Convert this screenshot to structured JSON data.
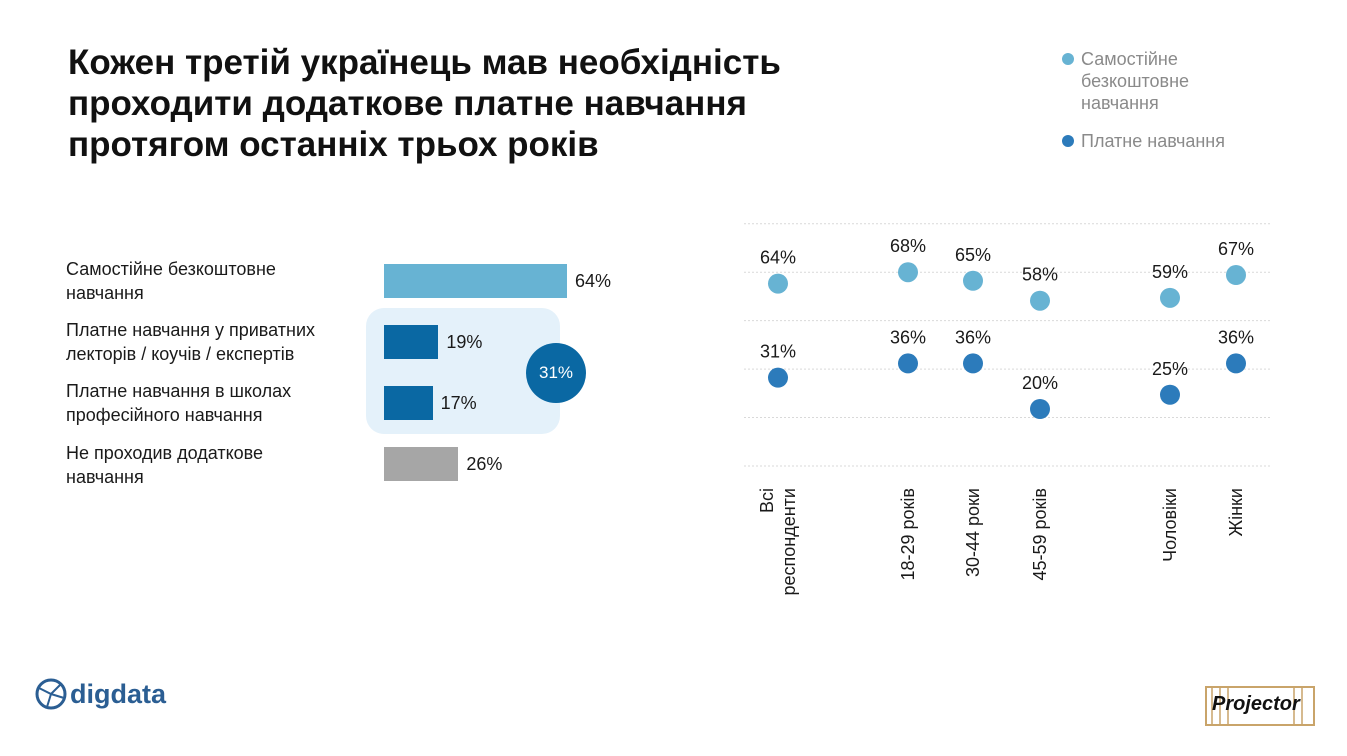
{
  "title": [
    "Кожен третій українець мав необхідність",
    "проходити додаткове платне навчання",
    "протягом останніх трьох років"
  ],
  "legend": [
    {
      "label_lines": [
        "Самостійне",
        "безкоштовне",
        "навчання"
      ],
      "color": "#67b3d3"
    },
    {
      "label_lines": [
        "Платне навчання"
      ],
      "color": "#2c7bbb"
    }
  ],
  "combined_badge": "31%",
  "logos": {
    "left": "digdata",
    "right": "Projector"
  },
  "chart_data": [
    {
      "type": "bar",
      "orientation": "horizontal",
      "categories": [
        [
          "Самостійне безкоштовне",
          "навчання"
        ],
        [
          "Платне навчання у приватних",
          "лекторів / коучів / експертів"
        ],
        [
          "Платне навчання в школах",
          "професійного навчання"
        ],
        [
          "Не проходив додаткове",
          "навчання"
        ]
      ],
      "values": [
        64,
        19,
        17,
        26
      ],
      "value_labels": [
        "64%",
        "19%",
        "17%",
        "26%"
      ],
      "colors": [
        "#67b3d3",
        "#0a68a3",
        "#0a68a3",
        "#a6a6a6"
      ],
      "xlim": [
        0,
        100
      ],
      "annotation": "31%"
    },
    {
      "type": "scatter",
      "categories": [
        [
          "Всі",
          "респонденти"
        ],
        [
          "18-29 років"
        ],
        [
          "30-44 роки"
        ],
        [
          "45-59 років"
        ],
        [
          "Чоловіки"
        ],
        [
          "Жінки"
        ]
      ],
      "series": [
        {
          "name": "Самостійне безкоштовне навчання",
          "color": "#67b3d3",
          "values": [
            64,
            68,
            65,
            58,
            59,
            67
          ],
          "labels": [
            "64%",
            "68%",
            "65%",
            "58%",
            "59%",
            "67%"
          ]
        },
        {
          "name": "Платне навчання",
          "color": "#2c7bbb",
          "values": [
            31,
            36,
            36,
            20,
            25,
            36
          ],
          "labels": [
            "31%",
            "36%",
            "36%",
            "20%",
            "25%",
            "36%"
          ]
        }
      ],
      "ylim": [
        0,
        100
      ],
      "grid": true
    }
  ]
}
